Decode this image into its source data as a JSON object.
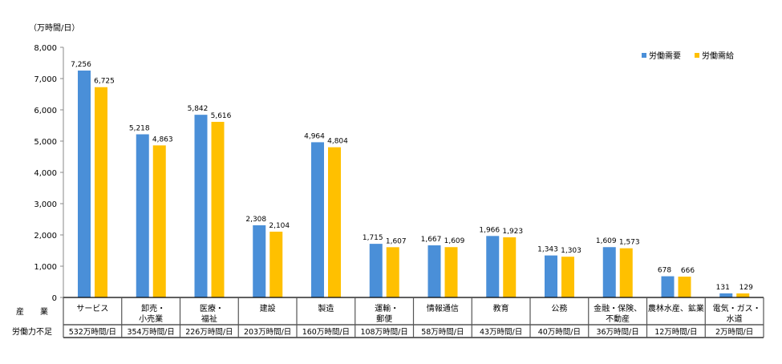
{
  "chart_data": {
    "type": "bar",
    "unit_label": "（万時間/日）",
    "ylim": [
      0,
      8000
    ],
    "yticks": [
      "0",
      "1,000",
      "2,000",
      "3,000",
      "4,000",
      "5,000",
      "6,000",
      "7,000",
      "8,000"
    ],
    "categories": [
      [
        "サービス"
      ],
      [
        "卸売・",
        "小売業"
      ],
      [
        "医療・",
        "福祉"
      ],
      [
        "建設"
      ],
      [
        "製造"
      ],
      [
        "運輸・",
        "郵便"
      ],
      [
        "情報通信"
      ],
      [
        "教育"
      ],
      [
        "公務"
      ],
      [
        "金融・保険、",
        "不動産"
      ],
      [
        "農林水産、鉱業"
      ],
      [
        "電気・ガス・",
        "水道"
      ]
    ],
    "series": [
      {
        "name": "労働需要",
        "color": "#4A8FD8",
        "values": [
          7256,
          5218,
          5842,
          2308,
          4964,
          1715,
          1667,
          1966,
          1343,
          1609,
          678,
          131
        ],
        "labels": [
          "7,256",
          "5,218",
          "5,842",
          "2,308",
          "4,964",
          "1,715",
          "1,667",
          "1,966",
          "1,343",
          "1,609",
          "678",
          "131"
        ]
      },
      {
        "name": "労働需給",
        "color": "#FFC000",
        "values": [
          6725,
          4863,
          5616,
          2104,
          4804,
          1607,
          1609,
          1923,
          1303,
          1573,
          666,
          129
        ],
        "labels": [
          "6,725",
          "4,863",
          "5,616",
          "2,104",
          "4,804",
          "1,607",
          "1,609",
          "1,923",
          "1,303",
          "1,573",
          "666",
          "129"
        ]
      }
    ],
    "legend_position": "top-right",
    "table": {
      "row_labels": [
        "産　　業",
        "労働力不足"
      ],
      "shortage": [
        "532万時間/日",
        "354万時間/日",
        "226万時間/日",
        "203万時間/日",
        "160万時間/日",
        "108万時間/日",
        "58万時間/日",
        "43万時間/日",
        "40万時間/日",
        "36万時間/日",
        "12万時間/日",
        "2万時間/日"
      ]
    }
  }
}
